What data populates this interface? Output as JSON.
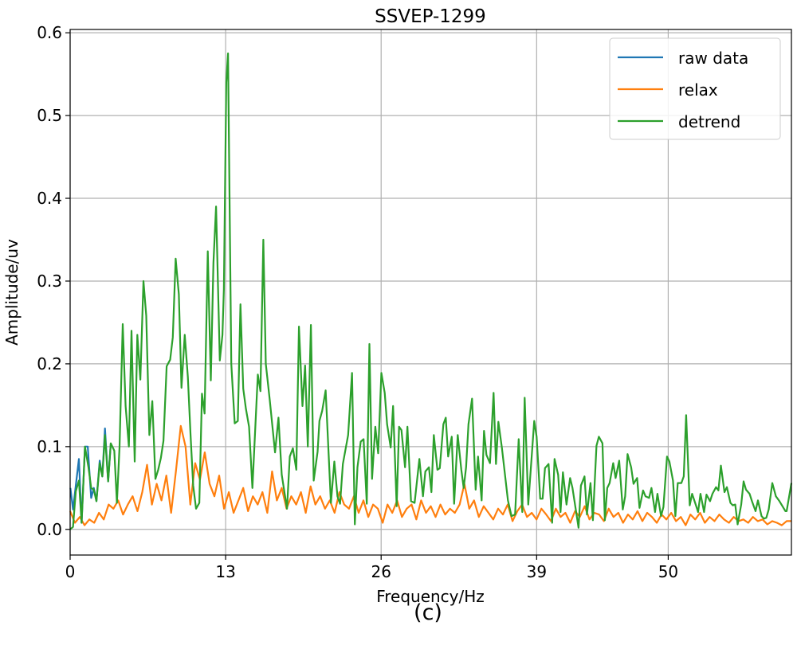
{
  "chart_data": {
    "type": "line",
    "title": "SSVEP-1299",
    "xlabel": "Frequency/Hz",
    "ylabel": "Amplitude/uv",
    "caption": "(c)",
    "xlim": [
      0,
      60.3
    ],
    "ylim": [
      -0.031,
      0.604
    ],
    "xticks": [
      0,
      13,
      26,
      39,
      50
    ],
    "xtick_labels": [
      "0",
      "13",
      "26",
      "39",
      "50"
    ],
    "yticks": [
      0.0,
      0.1,
      0.2,
      0.3,
      0.4,
      0.5,
      0.6
    ],
    "ytick_labels": [
      "0.0",
      "0.1",
      "0.2",
      "0.3",
      "0.4",
      "0.5",
      "0.6"
    ],
    "grid": true,
    "legend_position": "top-right",
    "series": [
      {
        "name": "raw data",
        "color": "#1f77b4",
        "points": [
          [
            0.02,
            0.05
          ],
          [
            0.24,
            0.024
          ],
          [
            0.73,
            0.085
          ],
          [
            0.96,
            0.008
          ],
          [
            1.24,
            0.1
          ],
          [
            1.47,
            0.1
          ],
          [
            1.76,
            0.038
          ],
          [
            1.98,
            0.05
          ],
          [
            2.2,
            0.034
          ],
          [
            2.47,
            0.083
          ],
          [
            2.69,
            0.064
          ],
          [
            2.91,
            0.122
          ],
          [
            3.18,
            0.058
          ],
          [
            3.4,
            0.104
          ]
        ]
      },
      {
        "name": "relax",
        "color": "#ff7f0e",
        "x_start": 0,
        "x_end": 60.3,
        "values": [
          0.022,
          0.008,
          0.015,
          0.005,
          0.012,
          0.008,
          0.02,
          0.012,
          0.03,
          0.025,
          0.035,
          0.018,
          0.03,
          0.04,
          0.022,
          0.045,
          0.078,
          0.03,
          0.055,
          0.035,
          0.065,
          0.02,
          0.07,
          0.125,
          0.1,
          0.03,
          0.08,
          0.06,
          0.093,
          0.055,
          0.04,
          0.065,
          0.025,
          0.045,
          0.02,
          0.035,
          0.05,
          0.022,
          0.04,
          0.03,
          0.045,
          0.02,
          0.07,
          0.035,
          0.05,
          0.025,
          0.04,
          0.03,
          0.045,
          0.02,
          0.052,
          0.03,
          0.04,
          0.025,
          0.035,
          0.02,
          0.045,
          0.03,
          0.025,
          0.04,
          0.02,
          0.035,
          0.015,
          0.03,
          0.025,
          0.008,
          0.03,
          0.02,
          0.035,
          0.015,
          0.025,
          0.03,
          0.012,
          0.035,
          0.02,
          0.028,
          0.015,
          0.03,
          0.018,
          0.025,
          0.02,
          0.03,
          0.055,
          0.025,
          0.035,
          0.015,
          0.028,
          0.02,
          0.012,
          0.025,
          0.018,
          0.03,
          0.01,
          0.022,
          0.03,
          0.015,
          0.02,
          0.012,
          0.025,
          0.018,
          0.01,
          0.025,
          0.015,
          0.02,
          0.008,
          0.022,
          0.015,
          0.028,
          0.012,
          0.02,
          0.018,
          0.01,
          0.025,
          0.015,
          0.02,
          0.008,
          0.018,
          0.012,
          0.022,
          0.01,
          0.02,
          0.015,
          0.008,
          0.018,
          0.012,
          0.02,
          0.01,
          0.015,
          0.005,
          0.018,
          0.012,
          0.02,
          0.008,
          0.015,
          0.01,
          0.018,
          0.012,
          0.008,
          0.015,
          0.01,
          0.012,
          0.008,
          0.015,
          0.01,
          0.012,
          0.006,
          0.01,
          0.008,
          0.005,
          0.01,
          0.01
        ]
      },
      {
        "name": "detrend",
        "color": "#2ca02c",
        "points": [
          [
            0.0,
            0.0
          ],
          [
            0.24,
            0.003
          ],
          [
            0.47,
            0.046
          ],
          [
            0.73,
            0.059
          ],
          [
            0.96,
            0.008
          ],
          [
            1.24,
            0.1
          ],
          [
            1.53,
            0.075
          ],
          [
            1.76,
            0.05
          ],
          [
            1.98,
            0.048
          ],
          [
            2.2,
            0.034
          ],
          [
            2.47,
            0.08
          ],
          [
            2.69,
            0.064
          ],
          [
            2.91,
            0.114
          ],
          [
            3.18,
            0.058
          ],
          [
            3.4,
            0.104
          ],
          [
            3.69,
            0.095
          ],
          [
            3.91,
            0.032
          ],
          [
            4.13,
            0.1
          ],
          [
            4.4,
            0.248
          ],
          [
            4.64,
            0.149
          ],
          [
            4.91,
            0.1
          ],
          [
            5.13,
            0.24
          ],
          [
            5.4,
            0.082
          ],
          [
            5.62,
            0.235
          ],
          [
            5.87,
            0.181
          ],
          [
            6.13,
            0.3
          ],
          [
            6.36,
            0.258
          ],
          [
            6.62,
            0.114
          ],
          [
            6.87,
            0.155
          ],
          [
            7.13,
            0.061
          ],
          [
            7.36,
            0.072
          ],
          [
            7.58,
            0.086
          ],
          [
            7.8,
            0.107
          ],
          [
            8.07,
            0.197
          ],
          [
            8.36,
            0.205
          ],
          [
            8.58,
            0.232
          ],
          [
            8.82,
            0.327
          ],
          [
            9.09,
            0.284
          ],
          [
            9.31,
            0.171
          ],
          [
            9.58,
            0.235
          ],
          [
            9.84,
            0.184
          ],
          [
            10.07,
            0.114
          ],
          [
            10.29,
            0.053
          ],
          [
            10.53,
            0.025
          ],
          [
            10.8,
            0.032
          ],
          [
            11.02,
            0.164
          ],
          [
            11.24,
            0.14
          ],
          [
            11.51,
            0.336
          ],
          [
            11.76,
            0.18
          ],
          [
            11.98,
            0.322
          ],
          [
            12.2,
            0.39
          ],
          [
            12.51,
            0.204
          ],
          [
            12.73,
            0.235
          ],
          [
            12.85,
            0.29
          ],
          [
            13.05,
            0.54
          ],
          [
            13.2,
            0.575
          ],
          [
            13.47,
            0.2
          ],
          [
            13.76,
            0.128
          ],
          [
            14.02,
            0.131
          ],
          [
            14.24,
            0.272
          ],
          [
            14.47,
            0.17
          ],
          [
            14.69,
            0.146
          ],
          [
            14.96,
            0.124
          ],
          [
            15.24,
            0.05
          ],
          [
            15.69,
            0.187
          ],
          [
            15.91,
            0.167
          ],
          [
            16.15,
            0.35
          ],
          [
            16.36,
            0.2
          ],
          [
            16.69,
            0.156
          ],
          [
            17.13,
            0.093
          ],
          [
            17.42,
            0.135
          ],
          [
            17.69,
            0.066
          ],
          [
            18.13,
            0.025
          ],
          [
            18.36,
            0.088
          ],
          [
            18.62,
            0.098
          ],
          [
            18.91,
            0.072
          ],
          [
            19.13,
            0.245
          ],
          [
            19.42,
            0.149
          ],
          [
            19.64,
            0.198
          ],
          [
            19.87,
            0.1
          ],
          [
            20.13,
            0.247
          ],
          [
            20.36,
            0.059
          ],
          [
            20.69,
            0.094
          ],
          [
            20.84,
            0.131
          ],
          [
            21.07,
            0.143
          ],
          [
            21.36,
            0.168
          ],
          [
            21.8,
            0.032
          ],
          [
            22.09,
            0.082
          ],
          [
            22.35,
            0.04
          ],
          [
            22.57,
            0.031
          ],
          [
            22.8,
            0.079
          ],
          [
            23.24,
            0.114
          ],
          [
            23.57,
            0.189
          ],
          [
            23.8,
            0.006
          ],
          [
            24.02,
            0.075
          ],
          [
            24.29,
            0.106
          ],
          [
            24.53,
            0.109
          ],
          [
            24.8,
            0.031
          ],
          [
            25.02,
            0.224
          ],
          [
            25.24,
            0.061
          ],
          [
            25.51,
            0.124
          ],
          [
            25.75,
            0.092
          ],
          [
            26.02,
            0.189
          ],
          [
            26.3,
            0.165
          ],
          [
            26.5,
            0.127
          ],
          [
            26.8,
            0.099
          ],
          [
            27.0,
            0.149
          ],
          [
            27.3,
            0.028
          ],
          [
            27.5,
            0.124
          ],
          [
            27.7,
            0.12
          ],
          [
            28.0,
            0.075
          ],
          [
            28.2,
            0.124
          ],
          [
            28.5,
            0.034
          ],
          [
            28.8,
            0.032
          ],
          [
            29.2,
            0.085
          ],
          [
            29.5,
            0.04
          ],
          [
            29.7,
            0.07
          ],
          [
            30.0,
            0.075
          ],
          [
            30.2,
            0.045
          ],
          [
            30.4,
            0.114
          ],
          [
            30.7,
            0.072
          ],
          [
            30.9,
            0.074
          ],
          [
            31.2,
            0.127
          ],
          [
            31.4,
            0.135
          ],
          [
            31.6,
            0.088
          ],
          [
            31.9,
            0.112
          ],
          [
            32.1,
            0.031
          ],
          [
            32.4,
            0.114
          ],
          [
            32.7,
            0.072
          ],
          [
            32.9,
            0.05
          ],
          [
            33.1,
            0.075
          ],
          [
            33.3,
            0.127
          ],
          [
            33.6,
            0.158
          ],
          [
            33.9,
            0.048
          ],
          [
            34.1,
            0.088
          ],
          [
            34.4,
            0.035
          ],
          [
            34.6,
            0.119
          ],
          [
            34.8,
            0.09
          ],
          [
            35.1,
            0.08
          ],
          [
            35.4,
            0.165
          ],
          [
            35.6,
            0.079
          ],
          [
            35.8,
            0.13
          ],
          [
            36.1,
            0.098
          ],
          [
            36.6,
            0.035
          ],
          [
            36.9,
            0.016
          ],
          [
            37.2,
            0.018
          ],
          [
            37.5,
            0.109
          ],
          [
            37.8,
            0.021
          ],
          [
            38.0,
            0.159
          ],
          [
            38.3,
            0.03
          ],
          [
            38.8,
            0.131
          ],
          [
            39.0,
            0.112
          ],
          [
            39.3,
            0.037
          ],
          [
            39.5,
            0.037
          ],
          [
            39.7,
            0.074
          ],
          [
            40.0,
            0.079
          ],
          [
            40.3,
            0.008
          ],
          [
            40.5,
            0.085
          ],
          [
            40.8,
            0.066
          ],
          [
            41.0,
            0.021
          ],
          [
            41.2,
            0.069
          ],
          [
            41.5,
            0.03
          ],
          [
            41.8,
            0.062
          ],
          [
            42.0,
            0.05
          ],
          [
            42.5,
            0.002
          ],
          [
            42.7,
            0.053
          ],
          [
            43.0,
            0.064
          ],
          [
            43.2,
            0.018
          ],
          [
            43.5,
            0.056
          ],
          [
            43.7,
            0.011
          ],
          [
            44.0,
            0.101
          ],
          [
            44.2,
            0.112
          ],
          [
            44.5,
            0.104
          ],
          [
            44.7,
            0.011
          ],
          [
            44.9,
            0.05
          ],
          [
            45.1,
            0.056
          ],
          [
            45.4,
            0.08
          ],
          [
            45.6,
            0.062
          ],
          [
            45.9,
            0.083
          ],
          [
            46.2,
            0.024
          ],
          [
            46.4,
            0.04
          ],
          [
            46.6,
            0.091
          ],
          [
            46.9,
            0.075
          ],
          [
            47.1,
            0.055
          ],
          [
            47.4,
            0.062
          ],
          [
            47.6,
            0.026
          ],
          [
            47.9,
            0.047
          ],
          [
            48.1,
            0.04
          ],
          [
            48.4,
            0.038
          ],
          [
            48.6,
            0.05
          ],
          [
            48.9,
            0.021
          ],
          [
            49.1,
            0.043
          ],
          [
            49.4,
            0.016
          ],
          [
            49.6,
            0.027
          ],
          [
            49.9,
            0.088
          ],
          [
            50.1,
            0.082
          ],
          [
            50.4,
            0.059
          ],
          [
            50.6,
            0.016
          ],
          [
            50.8,
            0.056
          ],
          [
            51.1,
            0.056
          ],
          [
            51.3,
            0.064
          ],
          [
            51.5,
            0.138
          ],
          [
            51.8,
            0.029
          ],
          [
            52.0,
            0.043
          ],
          [
            52.3,
            0.03
          ],
          [
            52.5,
            0.021
          ],
          [
            52.7,
            0.043
          ],
          [
            53.0,
            0.021
          ],
          [
            53.2,
            0.042
          ],
          [
            53.5,
            0.034
          ],
          [
            53.7,
            0.043
          ],
          [
            54.0,
            0.051
          ],
          [
            54.2,
            0.047
          ],
          [
            54.4,
            0.077
          ],
          [
            54.7,
            0.045
          ],
          [
            54.9,
            0.051
          ],
          [
            55.2,
            0.032
          ],
          [
            55.4,
            0.029
          ],
          [
            55.6,
            0.03
          ],
          [
            55.8,
            0.006
          ],
          [
            56.1,
            0.03
          ],
          [
            56.3,
            0.058
          ],
          [
            56.5,
            0.048
          ],
          [
            56.8,
            0.043
          ],
          [
            57.0,
            0.034
          ],
          [
            57.3,
            0.022
          ],
          [
            57.5,
            0.035
          ],
          [
            57.8,
            0.016
          ],
          [
            58.0,
            0.013
          ],
          [
            58.2,
            0.014
          ],
          [
            58.4,
            0.024
          ],
          [
            58.7,
            0.056
          ],
          [
            59.0,
            0.04
          ],
          [
            59.3,
            0.034
          ],
          [
            59.8,
            0.022
          ],
          [
            59.9,
            0.022
          ],
          [
            60.3,
            0.056
          ]
        ]
      }
    ]
  }
}
